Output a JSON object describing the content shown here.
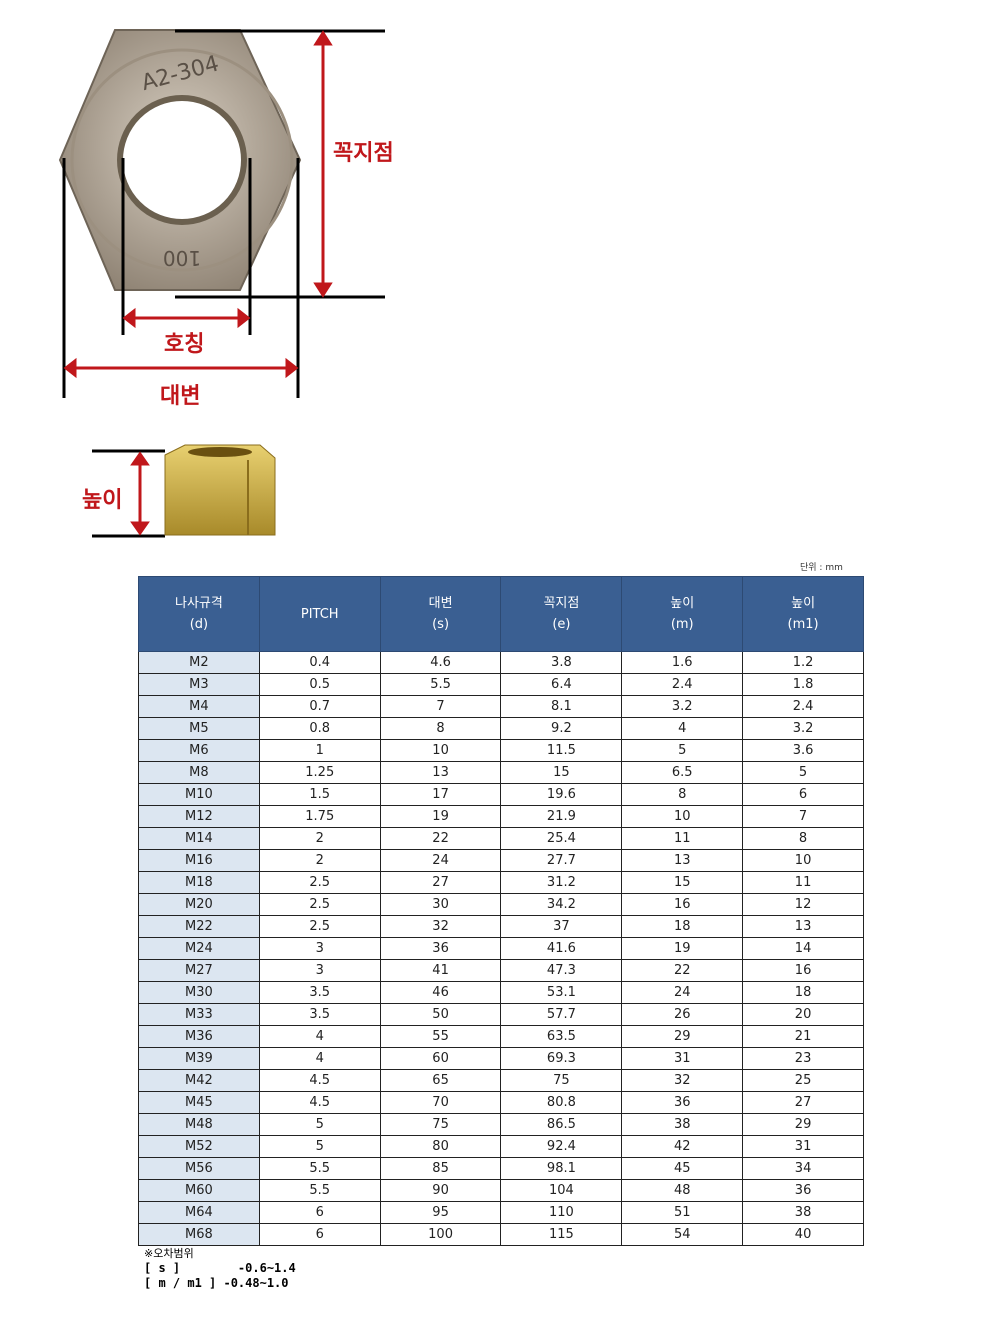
{
  "labels": {
    "corner": "꼭지점",
    "thread": "호칭",
    "flat": "대변",
    "height": "높이"
  },
  "nut_marking": {
    "top": "A2-304",
    "bottom": "100"
  },
  "unit": "단위 : mm",
  "table": {
    "headers": [
      [
        "나사규격",
        "(d)"
      ],
      [
        "PITCH",
        ""
      ],
      [
        "대변",
        "(s)"
      ],
      [
        "꼭지점",
        "(e)"
      ],
      [
        "높이",
        "(m)"
      ],
      [
        "높이",
        "(m1)"
      ]
    ],
    "rows": [
      [
        "M2",
        "0.4",
        "4.6",
        "3.8",
        "1.6",
        "1.2"
      ],
      [
        "M3",
        "0.5",
        "5.5",
        "6.4",
        "2.4",
        "1.8"
      ],
      [
        "M4",
        "0.7",
        "7",
        "8.1",
        "3.2",
        "2.4"
      ],
      [
        "M5",
        "0.8",
        "8",
        "9.2",
        "4",
        "3.2"
      ],
      [
        "M6",
        "1",
        "10",
        "11.5",
        "5",
        "3.6"
      ],
      [
        "M8",
        "1.25",
        "13",
        "15",
        "6.5",
        "5"
      ],
      [
        "M10",
        "1.5",
        "17",
        "19.6",
        "8",
        "6"
      ],
      [
        "M12",
        "1.75",
        "19",
        "21.9",
        "10",
        "7"
      ],
      [
        "M14",
        "2",
        "22",
        "25.4",
        "11",
        "8"
      ],
      [
        "M16",
        "2",
        "24",
        "27.7",
        "13",
        "10"
      ],
      [
        "M18",
        "2.5",
        "27",
        "31.2",
        "15",
        "11"
      ],
      [
        "M20",
        "2.5",
        "30",
        "34.2",
        "16",
        "12"
      ],
      [
        "M22",
        "2.5",
        "32",
        "37",
        "18",
        "13"
      ],
      [
        "M24",
        "3",
        "36",
        "41.6",
        "19",
        "14"
      ],
      [
        "M27",
        "3",
        "41",
        "47.3",
        "22",
        "16"
      ],
      [
        "M30",
        "3.5",
        "46",
        "53.1",
        "24",
        "18"
      ],
      [
        "M33",
        "3.5",
        "50",
        "57.7",
        "26",
        "20"
      ],
      [
        "M36",
        "4",
        "55",
        "63.5",
        "29",
        "21"
      ],
      [
        "M39",
        "4",
        "60",
        "69.3",
        "31",
        "23"
      ],
      [
        "M42",
        "4.5",
        "65",
        "75",
        "32",
        "25"
      ],
      [
        "M45",
        "4.5",
        "70",
        "80.8",
        "36",
        "27"
      ],
      [
        "M48",
        "5",
        "75",
        "86.5",
        "38",
        "29"
      ],
      [
        "M52",
        "5",
        "80",
        "92.4",
        "42",
        "31"
      ],
      [
        "M56",
        "5.5",
        "85",
        "98.1",
        "45",
        "34"
      ],
      [
        "M60",
        "5.5",
        "90",
        "104",
        "48",
        "36"
      ],
      [
        "M64",
        "6",
        "95",
        "110",
        "51",
        "38"
      ],
      [
        "M68",
        "6",
        "100",
        "115",
        "54",
        "40"
      ]
    ]
  },
  "notes": {
    "title": "※오차범위",
    "lines": [
      "[ s ]        -0.6~1.4",
      "[ m / m1 ] -0.48~1.0"
    ]
  },
  "colors": {
    "header": "#3a5f92",
    "first_col": "#dce6f1",
    "dimension": "#c0171b"
  }
}
